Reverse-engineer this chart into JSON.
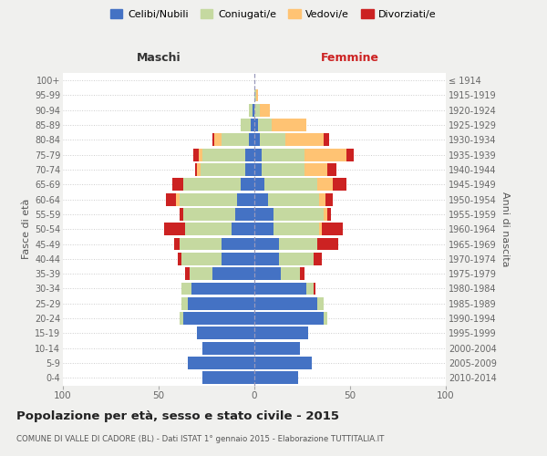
{
  "age_groups": [
    "0-4",
    "5-9",
    "10-14",
    "15-19",
    "20-24",
    "25-29",
    "30-34",
    "35-39",
    "40-44",
    "45-49",
    "50-54",
    "55-59",
    "60-64",
    "65-69",
    "70-74",
    "75-79",
    "80-84",
    "85-89",
    "90-94",
    "95-99",
    "100+"
  ],
  "birth_years": [
    "2010-2014",
    "2005-2009",
    "2000-2004",
    "1995-1999",
    "1990-1994",
    "1985-1989",
    "1980-1984",
    "1975-1979",
    "1970-1974",
    "1965-1969",
    "1960-1964",
    "1955-1959",
    "1950-1954",
    "1945-1949",
    "1940-1944",
    "1935-1939",
    "1930-1934",
    "1925-1929",
    "1920-1924",
    "1915-1919",
    "≤ 1914"
  ],
  "maschi": {
    "celibi": [
      27,
      35,
      27,
      30,
      37,
      35,
      33,
      22,
      17,
      17,
      12,
      10,
      9,
      7,
      5,
      5,
      3,
      2,
      1,
      0,
      0
    ],
    "coniugati": [
      0,
      0,
      0,
      0,
      2,
      3,
      5,
      12,
      21,
      22,
      24,
      27,
      30,
      30,
      23,
      22,
      14,
      5,
      2,
      0,
      0
    ],
    "vedovi": [
      0,
      0,
      0,
      0,
      0,
      0,
      0,
      0,
      0,
      0,
      0,
      0,
      2,
      0,
      2,
      2,
      4,
      0,
      0,
      0,
      0
    ],
    "divorziati": [
      0,
      0,
      0,
      0,
      0,
      0,
      0,
      2,
      2,
      3,
      11,
      2,
      5,
      6,
      1,
      3,
      1,
      0,
      0,
      0,
      0
    ]
  },
  "femmine": {
    "nubili": [
      23,
      30,
      24,
      28,
      36,
      33,
      27,
      14,
      13,
      13,
      10,
      10,
      7,
      5,
      4,
      4,
      3,
      2,
      0,
      0,
      0
    ],
    "coniugate": [
      0,
      0,
      0,
      0,
      2,
      3,
      4,
      10,
      18,
      20,
      24,
      26,
      27,
      28,
      22,
      22,
      13,
      7,
      3,
      1,
      0
    ],
    "vedove": [
      0,
      0,
      0,
      0,
      0,
      0,
      0,
      0,
      0,
      0,
      1,
      2,
      3,
      8,
      12,
      22,
      20,
      18,
      5,
      1,
      0
    ],
    "divorziate": [
      0,
      0,
      0,
      0,
      0,
      0,
      1,
      2,
      4,
      11,
      11,
      2,
      4,
      7,
      5,
      4,
      3,
      0,
      0,
      0,
      0
    ]
  },
  "colors": {
    "celibi": "#4472c4",
    "coniugati": "#c5d9a0",
    "vedovi": "#ffc373",
    "divorziati": "#cc2222"
  },
  "xlim": 100,
  "title": "Popolazione per età, sesso e stato civile - 2015",
  "subtitle": "COMUNE DI VALLE DI CADORE (BL) - Dati ISTAT 1° gennaio 2015 - Elaborazione TUTTITALIA.IT",
  "ylabel_left": "Fasce di età",
  "ylabel_right": "Anni di nascita",
  "maschi_label": "Maschi",
  "femmine_label": "Femmine",
  "maschi_color": "#333333",
  "femmine_color": "#cc2222",
  "bg_color": "#f0f0ee",
  "plot_bg": "#ffffff",
  "legend_labels": [
    "Celibi/Nubili",
    "Coniugati/e",
    "Vedovi/e",
    "Divorziati/e"
  ]
}
